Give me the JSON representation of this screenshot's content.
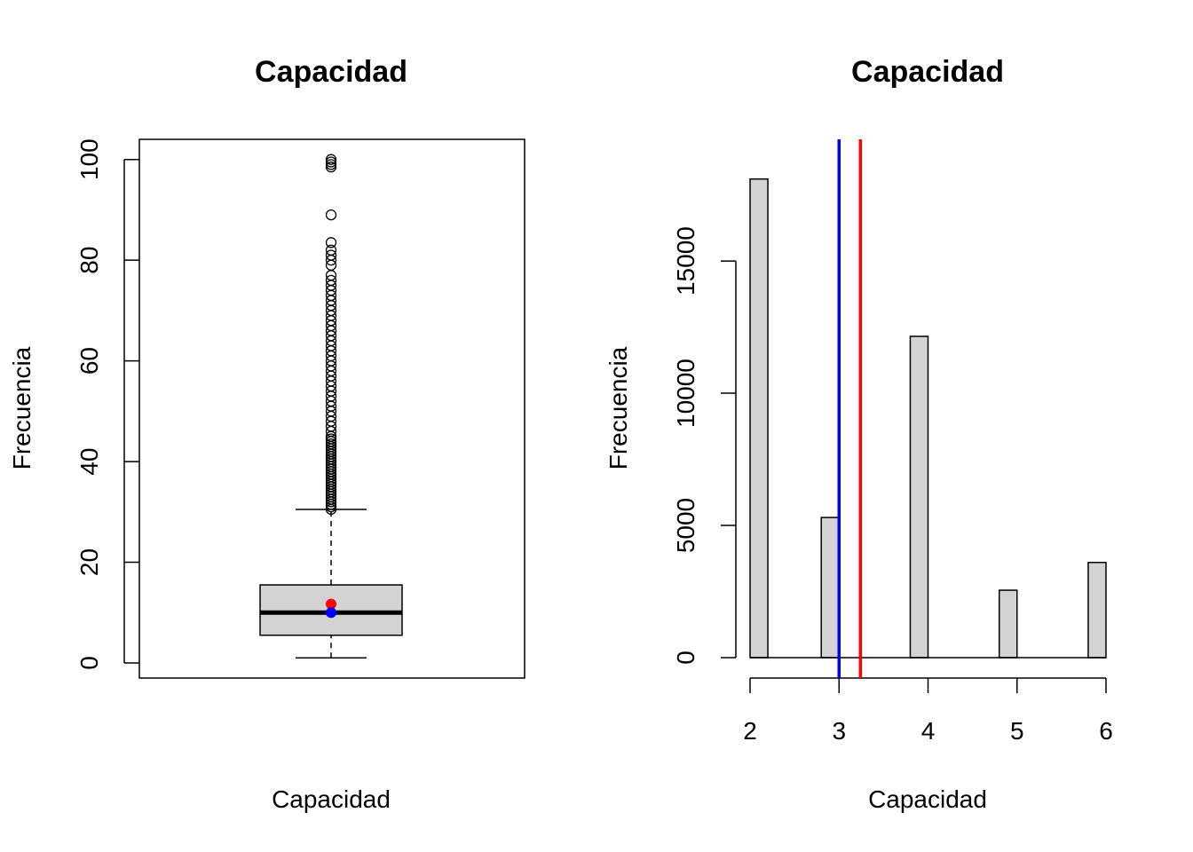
{
  "chart_data": [
    {
      "type": "boxplot",
      "title": "Capacidad",
      "xlabel": "Capacidad",
      "ylabel": "Frecuencia",
      "ylim": [
        -3,
        104
      ],
      "yticks": [
        "0",
        "20",
        "40",
        "60",
        "80",
        "100"
      ],
      "box": {
        "min": 1,
        "q1": 5.5,
        "median": 10,
        "q3": 15.5,
        "whisker_high": 30.5,
        "mean": 11.7,
        "median_point": 10
      },
      "mean_color": "#ff0000",
      "median_color": "#0000ff",
      "outliers": [
        30.5,
        31,
        31.5,
        32,
        32.5,
        33,
        33.5,
        34,
        34.5,
        35,
        35.5,
        36,
        36.5,
        37,
        37.5,
        38,
        38.5,
        39,
        39.5,
        40,
        40.5,
        41,
        41.5,
        42,
        42.5,
        43,
        43.5,
        44,
        44.5,
        45,
        46,
        47,
        48,
        49,
        50,
        51,
        52,
        53,
        54,
        55,
        56,
        57,
        58,
        59,
        60,
        61,
        62,
        63,
        64,
        65,
        66,
        67,
        68,
        69,
        70,
        71,
        72,
        73,
        74,
        75,
        76,
        77,
        79,
        80,
        81,
        82,
        83.5,
        89,
        98.5,
        99,
        99.5,
        100
      ]
    },
    {
      "type": "histogram",
      "title": "Capacidad",
      "xlabel": "Capacidad",
      "ylabel": "Frecuencia",
      "xlim": [
        2,
        6
      ],
      "ylim": [
        0,
        19500
      ],
      "xticks": [
        "2",
        "3",
        "4",
        "5",
        "6"
      ],
      "yticks": [
        "0",
        "5000",
        "10000",
        "15000"
      ],
      "bins": [
        {
          "x0": 2.0,
          "x1": 2.2,
          "count": 18100
        },
        {
          "x0": 2.8,
          "x1": 3.0,
          "count": 5300
        },
        {
          "x0": 3.8,
          "x1": 4.0,
          "count": 12150
        },
        {
          "x0": 4.8,
          "x1": 5.0,
          "count": 2550
        },
        {
          "x0": 5.8,
          "x1": 6.0,
          "count": 3600
        }
      ],
      "vlines": [
        {
          "value": 3.0,
          "color": "#0000ff"
        },
        {
          "value": 3.24,
          "color": "#ff0000"
        }
      ]
    }
  ]
}
